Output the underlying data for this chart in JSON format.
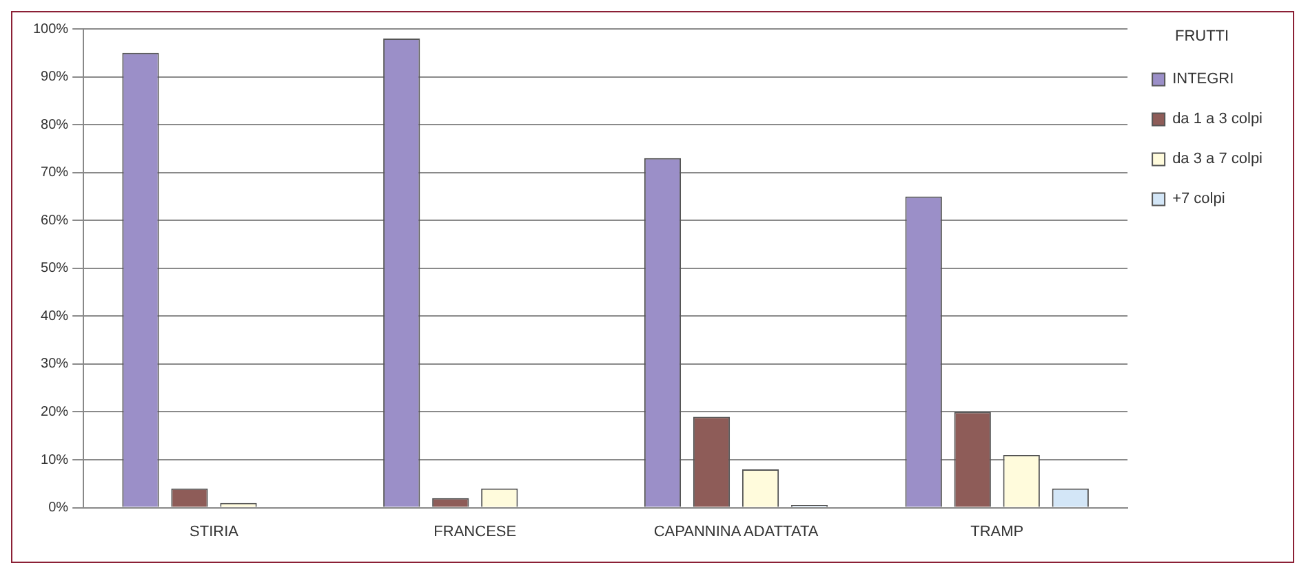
{
  "chart_data": {
    "type": "bar",
    "categories": [
      "STIRIA",
      "FRANCESE",
      "CAPANNINA ADATTATA",
      "TRAMP"
    ],
    "legend_title": "FRUTTI",
    "series": [
      {
        "name": "INTEGRI",
        "color": "#9b8fc8",
        "values": [
          95,
          98,
          73,
          65
        ]
      },
      {
        "name": "da 1 a 3 colpi",
        "color": "#8e5c58",
        "values": [
          4,
          2,
          19,
          20
        ]
      },
      {
        "name": "da 3 a 7 colpi",
        "color": "#fffbdc",
        "values": [
          1,
          4,
          8,
          11
        ]
      },
      {
        "name": "+7 colpi",
        "color": "#d3e6f7",
        "values": [
          0,
          0,
          0.5,
          4
        ]
      }
    ],
    "ylim": [
      0,
      100
    ],
    "yticks": [
      {
        "value": 0,
        "label": "0%"
      },
      {
        "value": 10,
        "label": "10%"
      },
      {
        "value": 20,
        "label": "20%"
      },
      {
        "value": 30,
        "label": "30%"
      },
      {
        "value": 40,
        "label": "40%"
      },
      {
        "value": 50,
        "label": "50%"
      },
      {
        "value": 60,
        "label": "60%"
      },
      {
        "value": 70,
        "label": "70%"
      },
      {
        "value": 80,
        "label": "80%"
      },
      {
        "value": 90,
        "label": "90%"
      },
      {
        "value": 100,
        "label": "100%"
      }
    ],
    "grid": "y",
    "legend": "top right"
  }
}
